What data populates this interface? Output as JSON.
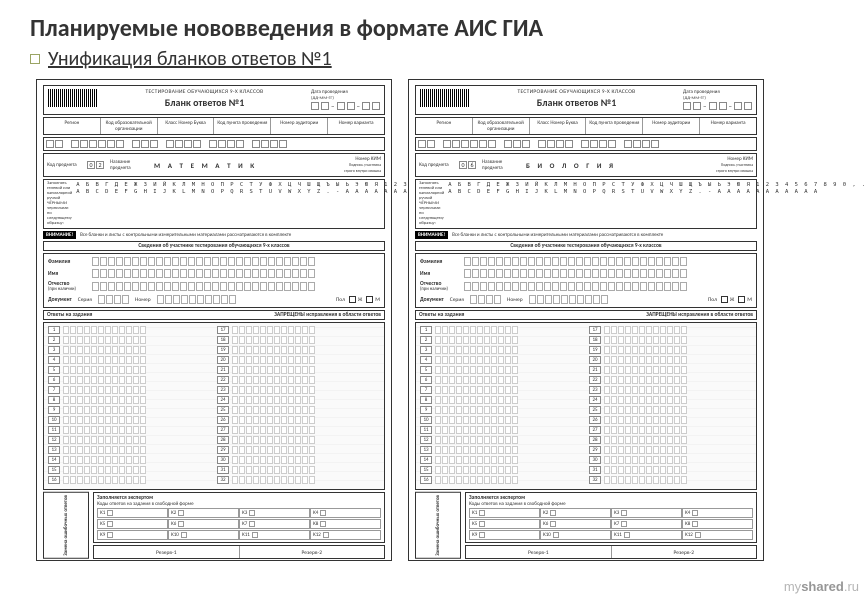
{
  "slide": {
    "title": "Планируемые нововведения в формате АИС ГИА",
    "subtitle": "Унификация бланков ответов №1"
  },
  "form_common": {
    "header_top": "ТЕСТИРОВАНИЕ ОБУЧАЮЩИХСЯ 9-Х КЛАССОВ",
    "form_title": "Бланк ответов №1",
    "date_label": "Дата проведения",
    "date_fmt": "(ДД-ММ-ГГ)",
    "row1_labels": [
      "Регион",
      "Код образовательной организации",
      "Класс Номер Буква",
      "Код пункта проведения",
      "Номер аудитории",
      "Номер варианта"
    ],
    "subj_code_label": "Код предмета",
    "subj_name_label": "Название предмета",
    "kim_label": "Номер КИМ",
    "sign_hint": "Подпись участника строго внутри окошка",
    "alpha_note": "Заполнять гелевой или капиллярной ручкой ЧЁРНЫМИ чернилами по следующему образцу:",
    "alpha_line1": "А Б В Г Д Е Ж З И Й К Л М Н О П Р С Т У Ф Х Ц Ч Ш Щ Ъ Ы Ь Э Ю Я 1 2 3 4 5 6 7 8 9 0 , .",
    "alpha_line2": "A B C D E F G H I J K L M N O P Q R S T U V W X Y Z . - А А А А А А А А А А А",
    "warn_badge": "ВНИМАНИЕ!",
    "warn_text": "Все бланки и листы с контрольными измерительными материалами рассматриваются в комплекте",
    "section_personal": "Сведения об участнике тестирования обучающихся 9-х классов",
    "p_surname": "Фамилия",
    "p_name": "Имя",
    "p_patr": "Отчество",
    "p_patr_sub": "(при наличии)",
    "p_doc": "Документ",
    "p_series": "Серия",
    "p_number": "Номер",
    "p_gender": "Пол",
    "p_gender_f": "Ж",
    "p_gender_m": "М",
    "answers_left": "Ответы на задания",
    "answers_right": "ЗАПРЕЩЕНЫ исправления в области ответов",
    "replace_label": "Замена ошибочных ответов",
    "expert_title": "Заполняется экспертом",
    "expert_sub": "Коды ответов на задания в свободной форме",
    "k_labels": [
      "К1",
      "К2",
      "К3",
      "К4",
      "К5",
      "К6",
      "К7",
      "К8",
      "К9",
      "К10",
      "К11",
      "К12"
    ],
    "reserve1": "Резерв-1",
    "reserve2": "Резерв-2",
    "left_nums": [
      "1",
      "2",
      "3",
      "4",
      "5",
      "6",
      "7",
      "8",
      "9",
      "10",
      "11",
      "12",
      "13",
      "14",
      "15",
      "16"
    ],
    "right_nums": [
      "17",
      "18",
      "19",
      "20",
      "21",
      "22",
      "23",
      "24",
      "25",
      "26",
      "27",
      "28",
      "29",
      "30",
      "31",
      "32"
    ]
  },
  "forms": [
    {
      "subj_code": "02",
      "subj_name": "М А Т Е М А Т И К"
    },
    {
      "subj_code": "06",
      "subj_name": "Б И О Л О Г И Я"
    }
  ],
  "watermark": {
    "prefix": "my",
    "mid": "shared",
    "suffix": ".ru"
  },
  "colors": {
    "bullet_border": "#9aa464",
    "text": "#333333",
    "cell_border": "#aaaaaa"
  }
}
